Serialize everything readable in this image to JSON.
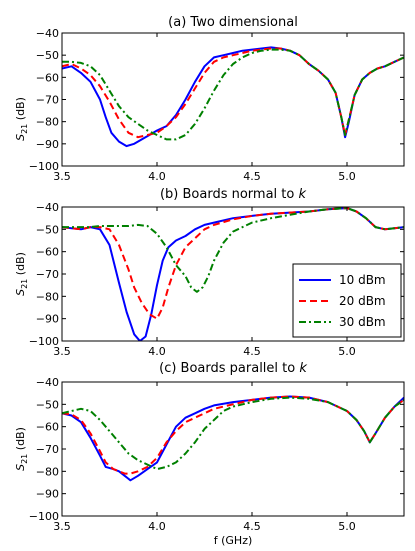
{
  "figure": {
    "xlabel": "f (GHz)"
  },
  "chart_data": [
    {
      "type": "line",
      "title": "(a) Two dimensional",
      "ylabel": "S21 (dB)",
      "xlim": [
        3.5,
        5.3
      ],
      "ylim": [
        -100,
        -40
      ],
      "grid": false,
      "xticks": [
        "3.5",
        "4.0",
        "4.5",
        "5.0"
      ],
      "yticks": [
        "-40",
        "-50",
        "-60",
        "-70",
        "-80",
        "-90",
        "-100"
      ],
      "series": [
        {
          "name": "10 dBm",
          "color": "#0000ff",
          "dash": "solid",
          "x": [
            3.5,
            3.55,
            3.6,
            3.65,
            3.7,
            3.73,
            3.76,
            3.8,
            3.84,
            3.88,
            3.92,
            3.96,
            4.0,
            4.05,
            4.1,
            4.15,
            4.2,
            4.25,
            4.3,
            4.35,
            4.4,
            4.45,
            4.5,
            4.55,
            4.6,
            4.65,
            4.7,
            4.75,
            4.8,
            4.85,
            4.9,
            4.94,
            4.97,
            4.99,
            5.01,
            5.04,
            5.08,
            5.12,
            5.16,
            5.2,
            5.25,
            5.3
          ],
          "y": [
            -56,
            -55,
            -58,
            -62,
            -70,
            -78,
            -85,
            -89,
            -91,
            -90,
            -88,
            -86,
            -84,
            -82,
            -77,
            -70,
            -62,
            -55,
            -51,
            -50,
            -49,
            -48,
            -47.5,
            -47,
            -46.5,
            -47,
            -48,
            -50,
            -54,
            -57,
            -61,
            -67,
            -78,
            -87,
            -80,
            -68,
            -61,
            -58,
            -56,
            -55,
            -53,
            -51
          ]
        },
        {
          "name": "20 dBm",
          "color": "#ff0000",
          "dash": "dashed",
          "x": [
            3.5,
            3.55,
            3.6,
            3.65,
            3.7,
            3.75,
            3.8,
            3.85,
            3.9,
            3.95,
            4.0,
            4.05,
            4.1,
            4.15,
            4.2,
            4.25,
            4.3,
            4.35,
            4.4,
            4.45,
            4.5,
            4.55,
            4.6,
            4.65,
            4.7,
            4.75,
            4.8,
            4.85,
            4.9,
            4.94,
            4.97,
            4.99,
            5.01,
            5.04,
            5.08,
            5.12,
            5.16,
            5.2,
            5.25,
            5.3
          ],
          "y": [
            -55,
            -54,
            -56,
            -59,
            -64,
            -71,
            -79,
            -85,
            -87,
            -86,
            -85,
            -82,
            -78,
            -72,
            -65,
            -58,
            -53,
            -51,
            -50,
            -49,
            -48,
            -47.5,
            -47,
            -47,
            -48,
            -50,
            -54,
            -57,
            -61,
            -67,
            -78,
            -86,
            -79,
            -68,
            -61,
            -58,
            -56,
            -55,
            -53,
            -51
          ]
        },
        {
          "name": "30 dBm",
          "color": "#008000",
          "dash": "dashdot",
          "x": [
            3.5,
            3.55,
            3.6,
            3.65,
            3.7,
            3.75,
            3.8,
            3.85,
            3.9,
            3.95,
            4.0,
            4.05,
            4.1,
            4.15,
            4.2,
            4.25,
            4.3,
            4.35,
            4.4,
            4.45,
            4.5,
            4.55,
            4.6,
            4.65,
            4.7,
            4.75,
            4.8,
            4.85,
            4.9,
            4.94,
            4.97,
            4.99,
            5.01,
            5.04,
            5.08,
            5.12,
            5.16,
            5.2,
            5.25,
            5.3
          ],
          "y": [
            -53,
            -53,
            -53.5,
            -55,
            -59,
            -66,
            -73,
            -78,
            -81,
            -84,
            -86,
            -88,
            -88,
            -86,
            -81,
            -74,
            -66,
            -59,
            -54,
            -51,
            -49,
            -48,
            -47.5,
            -47.5,
            -48,
            -50,
            -54,
            -57,
            -61,
            -67,
            -78,
            -86,
            -79,
            -68,
            -61,
            -58,
            -56,
            -55,
            -53,
            -51
          ]
        }
      ]
    },
    {
      "type": "line",
      "title": "(b) Boards normal to k",
      "ylabel": "S21 (dB)",
      "xlim": [
        3.5,
        5.3
      ],
      "ylim": [
        -100,
        -40
      ],
      "grid": false,
      "legend": "lower right",
      "xticks": [
        "3.5",
        "4.0",
        "4.5",
        "5.0"
      ],
      "yticks": [
        "-40",
        "-50",
        "-60",
        "-70",
        "-80",
        "-90",
        "-100"
      ],
      "series": [
        {
          "name": "10 dBm",
          "color": "#0000ff",
          "dash": "solid",
          "x": [
            3.5,
            3.55,
            3.6,
            3.65,
            3.7,
            3.75,
            3.8,
            3.84,
            3.88,
            3.91,
            3.94,
            3.97,
            4.0,
            4.03,
            4.06,
            4.1,
            4.15,
            4.2,
            4.25,
            4.3,
            4.4,
            4.5,
            4.6,
            4.7,
            4.8,
            4.9,
            5.0,
            5.05,
            5.1,
            5.15,
            5.2,
            5.25,
            5.3
          ],
          "y": [
            -49,
            -49.5,
            -50,
            -49,
            -50,
            -57,
            -74,
            -87,
            -97,
            -100,
            -98,
            -88,
            -75,
            -64,
            -58,
            -55,
            -53,
            -50,
            -48,
            -47,
            -45,
            -44,
            -43,
            -42.5,
            -42,
            -41,
            -40.5,
            -42,
            -45,
            -49,
            -50,
            -49.5,
            -49
          ]
        },
        {
          "name": "20 dBm",
          "color": "#ff0000",
          "dash": "dashed",
          "x": [
            3.5,
            3.55,
            3.6,
            3.65,
            3.7,
            3.75,
            3.8,
            3.85,
            3.88,
            3.92,
            3.96,
            4.0,
            4.03,
            4.06,
            4.1,
            4.15,
            4.2,
            4.25,
            4.3,
            4.4,
            4.5,
            4.6,
            4.7,
            4.8,
            4.9,
            5.0,
            5.05,
            5.1,
            5.15,
            5.2,
            5.25,
            5.3
          ],
          "y": [
            -49,
            -49.5,
            -50,
            -49,
            -49,
            -50,
            -57,
            -68,
            -76,
            -83,
            -88,
            -90,
            -85,
            -76,
            -66,
            -58,
            -54,
            -50,
            -48,
            -45.5,
            -44,
            -43,
            -42.5,
            -42,
            -41,
            -40.5,
            -42,
            -45,
            -49,
            -50,
            -49.5,
            -49
          ]
        },
        {
          "name": "30 dBm",
          "color": "#008000",
          "dash": "dashdot",
          "x": [
            3.5,
            3.55,
            3.6,
            3.65,
            3.7,
            3.75,
            3.8,
            3.85,
            3.9,
            3.95,
            4.0,
            4.05,
            4.1,
            4.15,
            4.18,
            4.21,
            4.24,
            4.27,
            4.3,
            4.35,
            4.4,
            4.45,
            4.5,
            4.6,
            4.7,
            4.8,
            4.9,
            5.0,
            5.05,
            5.1,
            5.15,
            5.2,
            5.25,
            5.3
          ],
          "y": [
            -49,
            -49,
            -49,
            -49,
            -48.5,
            -48.5,
            -48.5,
            -48.5,
            -48,
            -48.5,
            -52,
            -58,
            -66,
            -71,
            -76,
            -78,
            -76,
            -71,
            -64,
            -56,
            -51,
            -49,
            -47,
            -45,
            -43.5,
            -42,
            -41,
            -40.5,
            -42,
            -45,
            -49,
            -50,
            -49.5,
            -49
          ]
        }
      ]
    },
    {
      "type": "line",
      "title": "(c) Boards parallel to k",
      "ylabel": "S21 (dB)",
      "xlim": [
        3.5,
        5.3
      ],
      "ylim": [
        -100,
        -40
      ],
      "grid": false,
      "xticks": [
        "3.5",
        "4.0",
        "4.5",
        "5.0"
      ],
      "yticks": [
        "-40",
        "-50",
        "-60",
        "-70",
        "-80",
        "-90",
        "-100"
      ],
      "series": [
        {
          "name": "10 dBm",
          "color": "#0000ff",
          "dash": "solid",
          "x": [
            3.5,
            3.55,
            3.6,
            3.65,
            3.7,
            3.73,
            3.77,
            3.8,
            3.83,
            3.86,
            3.9,
            3.95,
            4.0,
            4.05,
            4.1,
            4.15,
            4.2,
            4.25,
            4.3,
            4.4,
            4.5,
            4.6,
            4.7,
            4.8,
            4.9,
            5.0,
            5.05,
            5.09,
            5.12,
            5.15,
            5.2,
            5.25,
            5.3
          ],
          "y": [
            -54,
            -55,
            -58,
            -65,
            -73,
            -78,
            -79,
            -80,
            -82,
            -84,
            -82,
            -79,
            -76,
            -68,
            -60,
            -56,
            -54,
            -52,
            -50.5,
            -49,
            -48,
            -47,
            -46.5,
            -47,
            -49,
            -53,
            -57,
            -62,
            -67,
            -63,
            -56,
            -51,
            -47
          ]
        },
        {
          "name": "20 dBm",
          "color": "#ff0000",
          "dash": "dashed",
          "x": [
            3.5,
            3.55,
            3.6,
            3.65,
            3.7,
            3.73,
            3.77,
            3.8,
            3.83,
            3.86,
            3.9,
            3.95,
            4.0,
            4.05,
            4.1,
            4.15,
            4.2,
            4.25,
            4.3,
            4.4,
            4.5,
            4.6,
            4.7,
            4.8,
            4.9,
            5.0,
            5.05,
            5.09,
            5.12,
            5.15,
            5.2,
            5.25,
            5.3
          ],
          "y": [
            -54,
            -54.5,
            -57,
            -63,
            -71,
            -76,
            -79,
            -80,
            -81,
            -81,
            -80,
            -78,
            -74,
            -67,
            -62,
            -58,
            -56,
            -54,
            -52,
            -50,
            -48,
            -47,
            -46.5,
            -47,
            -49,
            -53,
            -57,
            -62,
            -67,
            -63,
            -56,
            -51,
            -48
          ]
        },
        {
          "name": "30 dBm",
          "color": "#008000",
          "dash": "dashdot",
          "x": [
            3.5,
            3.55,
            3.6,
            3.65,
            3.7,
            3.75,
            3.8,
            3.85,
            3.9,
            3.95,
            4.0,
            4.05,
            4.1,
            4.15,
            4.2,
            4.25,
            4.3,
            4.35,
            4.4,
            4.5,
            4.6,
            4.7,
            4.8,
            4.9,
            5.0,
            5.05,
            5.09,
            5.12,
            5.15,
            5.2,
            5.25,
            5.3
          ],
          "y": [
            -54,
            -53,
            -52,
            -53,
            -57,
            -62,
            -67,
            -72,
            -75,
            -77,
            -79,
            -78,
            -76,
            -72,
            -67,
            -61,
            -57,
            -53,
            -51,
            -49,
            -47.5,
            -47,
            -47.5,
            -49,
            -53,
            -57,
            -62,
            -67,
            -63,
            -56,
            -51,
            -48
          ]
        }
      ]
    }
  ]
}
